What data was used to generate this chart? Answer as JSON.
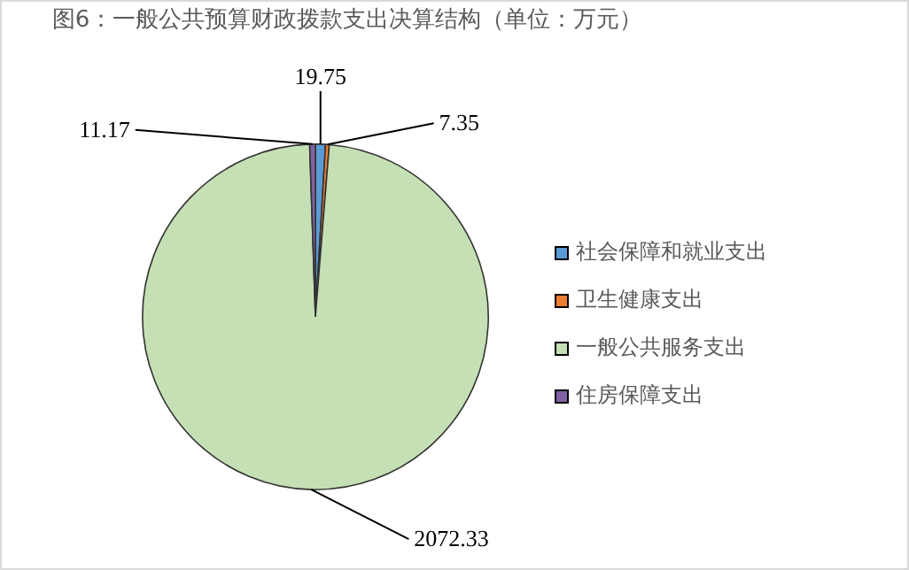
{
  "chart_data": {
    "type": "pie",
    "title": "图6：一般公共预算财政拨款支出决算结构（单位：万元）",
    "categories": [
      "社会保障和就业支出",
      "卫生健康支出",
      "一般公共服务支出",
      "住房保障支出"
    ],
    "values": [
      19.75,
      7.35,
      2072.33,
      11.17
    ],
    "colors": [
      "#5b9bd5",
      "#ed7d31",
      "#c5e0b4",
      "#7f63a3"
    ],
    "data_labels": true,
    "legend": "right"
  }
}
